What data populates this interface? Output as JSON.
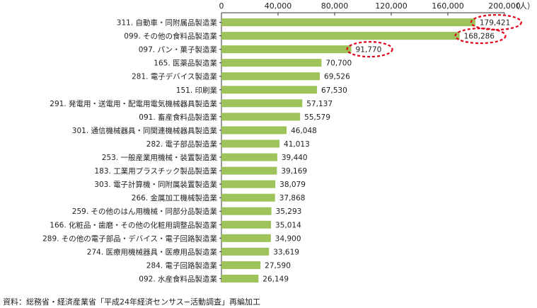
{
  "chart_data": {
    "type": "bar",
    "orientation": "horizontal",
    "unit": "（人）",
    "xlim": [
      0,
      200000
    ],
    "x_ticks": [
      "0",
      "40,000",
      "80,000",
      "120,000",
      "160,000",
      "200,000"
    ],
    "x_tick_values": [
      0,
      40000,
      80000,
      120000,
      160000,
      200000
    ],
    "bar_color": "#9dc35a",
    "highlight_color": "#e3001b",
    "highlighted_indices": [
      0,
      1,
      2
    ],
    "categories": [
      "311. 自動車・同附属品製造業",
      "099. その他の食料品製造業",
      "097. パン・菓子製造業",
      "165. 医薬品製造業",
      "281. 電子デバイス製造業",
      "151. 印刷業",
      "291. 発電用・送電用・配電用電気機械器具製造業",
      "091. 畜産食料品製造業",
      "301. 通信機械器具・同関連機械器具製造業",
      "282. 電子部品製造業",
      "253. 一般産業用機械・装置製造業",
      "183. 工業用プラスチック製品製造業",
      "303. 電子計算機・同附属装置製造業",
      "266. 金属加工機械製造業",
      "259. その他のはん用機械・同部分品製造業",
      "166. 化粧品・歯磨・その他の化粧用調整品製造業",
      "289. その他の電子部品・デバイス・電子回路製造業",
      "274. 医療用機械器具・医療用品製造業",
      "284. 電子回路製造業",
      "092. 水産食料品製造業"
    ],
    "values": [
      179421,
      168286,
      91770,
      70700,
      69526,
      67530,
      57137,
      55579,
      46048,
      41013,
      39440,
      39169,
      38079,
      37868,
      35293,
      35014,
      34900,
      33619,
      27590,
      26149
    ],
    "value_labels": [
      "179,421",
      "168,286",
      "91,770",
      "70,700",
      "69,526",
      "67,530",
      "57,137",
      "55,579",
      "46,048",
      "41,013",
      "39,440",
      "39,169",
      "38,079",
      "37,868",
      "35,293",
      "35,014",
      "34,900",
      "33,619",
      "27,590",
      "26,149"
    ]
  },
  "source_note": "資料：総務省・経済産業省「平成24年経済センサス−活動調査」再編加工"
}
